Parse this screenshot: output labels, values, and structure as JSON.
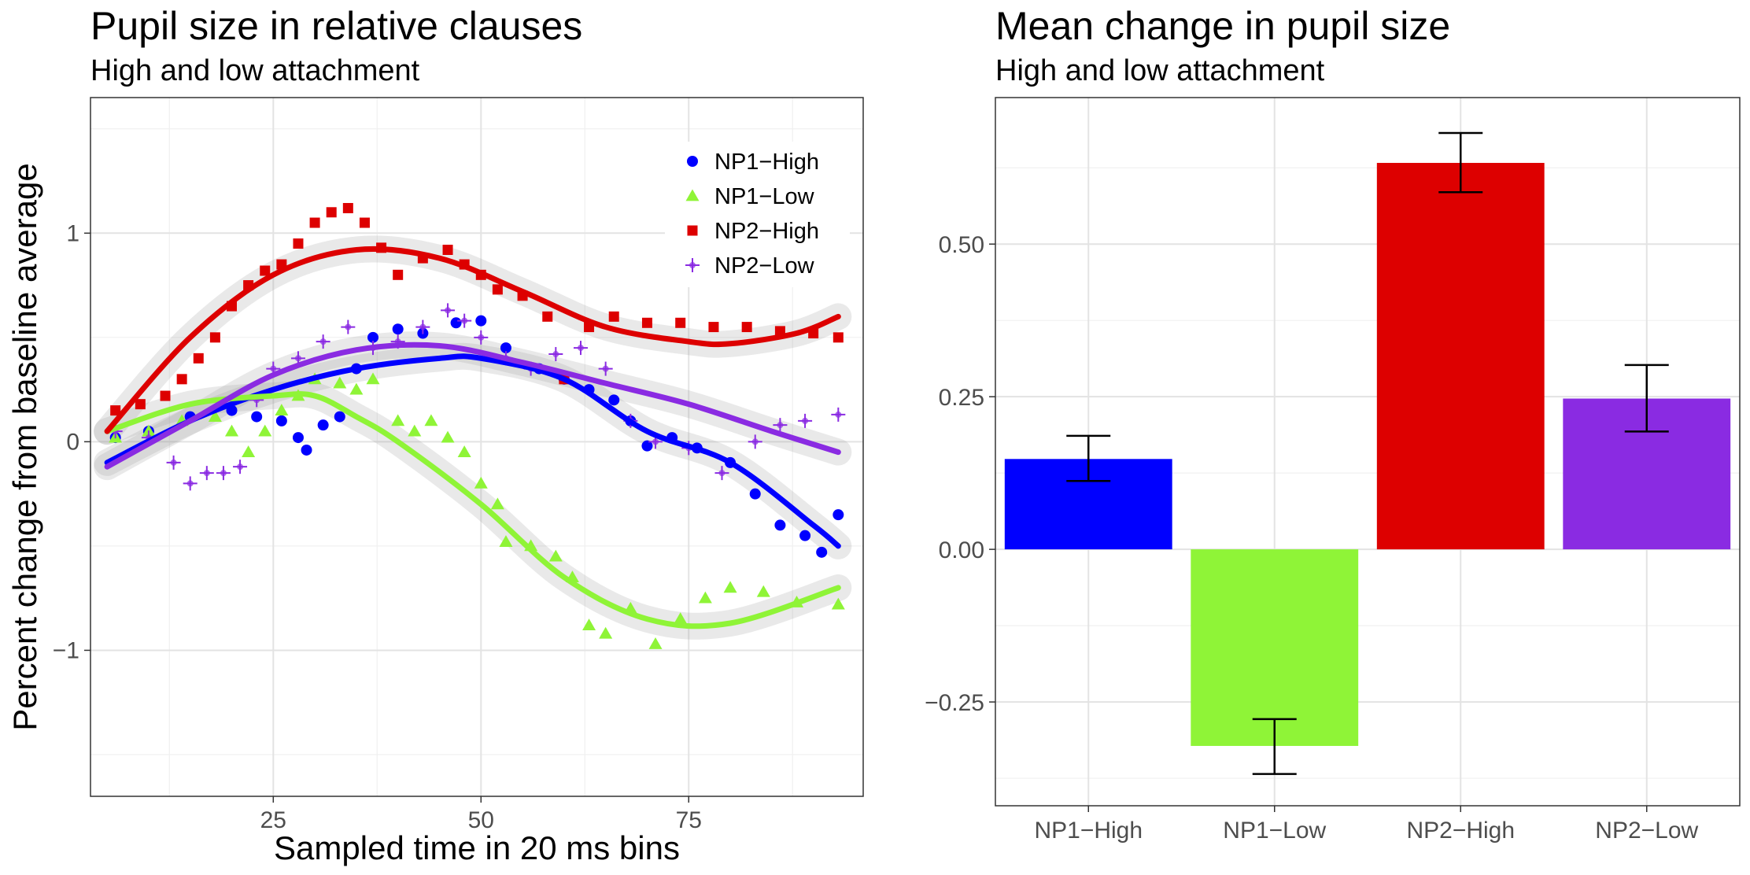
{
  "chart_data": [
    {
      "type": "scatter",
      "title": "Pupil size in relative clauses",
      "subtitle": "High and low attachment",
      "xlabel": "Sampled time in 20 ms bins",
      "ylabel": "Percent change from baseline average",
      "xlim": [
        3,
        96
      ],
      "ylim": [
        -1.7,
        1.65
      ],
      "xticks": [
        25,
        50,
        75
      ],
      "yticks": [
        -1,
        0,
        1
      ],
      "grid": true,
      "smooth": "loess with confidence band",
      "legend_position": "top-right",
      "series": [
        {
          "name": "NP1−High",
          "color": "#0000ff",
          "marker": "circle",
          "points": [
            [
              6,
              0.02
            ],
            [
              10,
              0.05
            ],
            [
              15,
              0.12
            ],
            [
              20,
              0.15
            ],
            [
              23,
              0.12
            ],
            [
              26,
              0.1
            ],
            [
              28,
              0.02
            ],
            [
              29,
              -0.04
            ],
            [
              31,
              0.08
            ],
            [
              33,
              0.12
            ],
            [
              35,
              0.35
            ],
            [
              37,
              0.5
            ],
            [
              40,
              0.54
            ],
            [
              43,
              0.52
            ],
            [
              47,
              0.57
            ],
            [
              50,
              0.58
            ],
            [
              53,
              0.45
            ],
            [
              57,
              0.35
            ],
            [
              60,
              0.3
            ],
            [
              63,
              0.25
            ],
            [
              66,
              0.2
            ],
            [
              68,
              0.1
            ],
            [
              70,
              -0.02
            ],
            [
              73,
              0.02
            ],
            [
              76,
              -0.03
            ],
            [
              80,
              -0.1
            ],
            [
              83,
              -0.25
            ],
            [
              86,
              -0.4
            ],
            [
              89,
              -0.45
            ],
            [
              91,
              -0.53
            ],
            [
              93,
              -0.35
            ]
          ],
          "smooth": [
            [
              5,
              -0.1
            ],
            [
              15,
              0.1
            ],
            [
              25,
              0.25
            ],
            [
              35,
              0.35
            ],
            [
              45,
              0.4
            ],
            [
              50,
              0.4
            ],
            [
              60,
              0.3
            ],
            [
              70,
              0.05
            ],
            [
              80,
              -0.1
            ],
            [
              90,
              -0.4
            ],
            [
              93,
              -0.5
            ]
          ]
        },
        {
          "name": "NP1−Low",
          "color": "#8ff437",
          "marker": "triangle",
          "points": [
            [
              6,
              0.02
            ],
            [
              10,
              0.05
            ],
            [
              14,
              0.1
            ],
            [
              18,
              0.12
            ],
            [
              20,
              0.05
            ],
            [
              22,
              -0.05
            ],
            [
              24,
              0.05
            ],
            [
              26,
              0.15
            ],
            [
              28,
              0.22
            ],
            [
              30,
              0.3
            ],
            [
              33,
              0.28
            ],
            [
              35,
              0.25
            ],
            [
              37,
              0.3
            ],
            [
              40,
              0.1
            ],
            [
              42,
              0.05
            ],
            [
              44,
              0.1
            ],
            [
              46,
              0.02
            ],
            [
              48,
              -0.05
            ],
            [
              50,
              -0.2
            ],
            [
              52,
              -0.3
            ],
            [
              53,
              -0.48
            ],
            [
              56,
              -0.5
            ],
            [
              59,
              -0.55
            ],
            [
              61,
              -0.65
            ],
            [
              63,
              -0.88
            ],
            [
              65,
              -0.92
            ],
            [
              68,
              -0.8
            ],
            [
              71,
              -0.97
            ],
            [
              74,
              -0.85
            ],
            [
              77,
              -0.75
            ],
            [
              80,
              -0.7
            ],
            [
              84,
              -0.72
            ],
            [
              88,
              -0.77
            ],
            [
              93,
              -0.78
            ]
          ],
          "smooth": [
            [
              5,
              0.05
            ],
            [
              15,
              0.18
            ],
            [
              25,
              0.22
            ],
            [
              30,
              0.22
            ],
            [
              35,
              0.12
            ],
            [
              40,
              0
            ],
            [
              50,
              -0.3
            ],
            [
              60,
              -0.65
            ],
            [
              70,
              -0.85
            ],
            [
              80,
              -0.87
            ],
            [
              93,
              -0.7
            ]
          ]
        },
        {
          "name": "NP2−High",
          "color": "#dd0000",
          "marker": "square",
          "points": [
            [
              6,
              0.15
            ],
            [
              9,
              0.18
            ],
            [
              12,
              0.22
            ],
            [
              14,
              0.3
            ],
            [
              16,
              0.4
            ],
            [
              18,
              0.5
            ],
            [
              20,
              0.65
            ],
            [
              22,
              0.75
            ],
            [
              24,
              0.82
            ],
            [
              26,
              0.85
            ],
            [
              28,
              0.95
            ],
            [
              30,
              1.05
            ],
            [
              32,
              1.1
            ],
            [
              34,
              1.12
            ],
            [
              36,
              1.05
            ],
            [
              38,
              0.93
            ],
            [
              40,
              0.8
            ],
            [
              43,
              0.88
            ],
            [
              46,
              0.92
            ],
            [
              48,
              0.85
            ],
            [
              50,
              0.8
            ],
            [
              52,
              0.73
            ],
            [
              55,
              0.7
            ],
            [
              58,
              0.6
            ],
            [
              60,
              0.3
            ],
            [
              63,
              0.55
            ],
            [
              66,
              0.6
            ],
            [
              70,
              0.57
            ],
            [
              74,
              0.57
            ],
            [
              78,
              0.55
            ],
            [
              82,
              0.55
            ],
            [
              86,
              0.53
            ],
            [
              90,
              0.52
            ],
            [
              93,
              0.5
            ]
          ],
          "smooth": [
            [
              5,
              0.05
            ],
            [
              15,
              0.5
            ],
            [
              25,
              0.8
            ],
            [
              35,
              0.92
            ],
            [
              45,
              0.88
            ],
            [
              55,
              0.72
            ],
            [
              65,
              0.55
            ],
            [
              75,
              0.48
            ],
            [
              80,
              0.47
            ],
            [
              88,
              0.52
            ],
            [
              93,
              0.6
            ]
          ]
        },
        {
          "name": "NP2−Low",
          "color": "#8a2be2",
          "marker": "plus",
          "points": [
            [
              6,
              0.05
            ],
            [
              10,
              0.02
            ],
            [
              13,
              -0.1
            ],
            [
              15,
              -0.2
            ],
            [
              17,
              -0.15
            ],
            [
              19,
              -0.15
            ],
            [
              21,
              -0.12
            ],
            [
              23,
              0.2
            ],
            [
              25,
              0.35
            ],
            [
              28,
              0.4
            ],
            [
              31,
              0.48
            ],
            [
              34,
              0.55
            ],
            [
              37,
              0.45
            ],
            [
              40,
              0.48
            ],
            [
              43,
              0.55
            ],
            [
              46,
              0.63
            ],
            [
              48,
              0.58
            ],
            [
              50,
              0.5
            ],
            [
              53,
              0.4
            ],
            [
              56,
              0.35
            ],
            [
              59,
              0.42
            ],
            [
              62,
              0.45
            ],
            [
              65,
              0.35
            ],
            [
              68,
              0.1
            ],
            [
              71,
              0.0
            ],
            [
              75,
              -0.03
            ],
            [
              79,
              -0.15
            ],
            [
              83,
              0.0
            ],
            [
              86,
              0.08
            ],
            [
              89,
              0.1
            ],
            [
              93,
              0.13
            ]
          ],
          "smooth": [
            [
              5,
              -0.12
            ],
            [
              15,
              0.1
            ],
            [
              25,
              0.32
            ],
            [
              35,
              0.44
            ],
            [
              45,
              0.46
            ],
            [
              55,
              0.38
            ],
            [
              65,
              0.28
            ],
            [
              75,
              0.18
            ],
            [
              85,
              0.05
            ],
            [
              93,
              -0.05
            ]
          ]
        }
      ]
    },
    {
      "type": "bar",
      "title": "Mean change in pupil size",
      "subtitle": "High and low attachment",
      "categories": [
        "NP1−High",
        "NP1−Low",
        "NP2−High",
        "NP2−Low"
      ],
      "values": [
        0.148,
        -0.322,
        0.633,
        0.247
      ],
      "error_low": [
        0.112,
        -0.368,
        0.585,
        0.193
      ],
      "error_high": [
        0.186,
        -0.278,
        0.682,
        0.302
      ],
      "colors": [
        "#0000ff",
        "#8ff437",
        "#dd0000",
        "#8a2be2"
      ],
      "xlabel": "",
      "ylabel": "",
      "ylim": [
        -0.42,
        0.74
      ],
      "yticks": [
        -0.25,
        0,
        0.25,
        0.5
      ],
      "ytick_labels": [
        "−0.25",
        "0.00",
        "0.25",
        "0.50"
      ],
      "grid": true
    }
  ]
}
